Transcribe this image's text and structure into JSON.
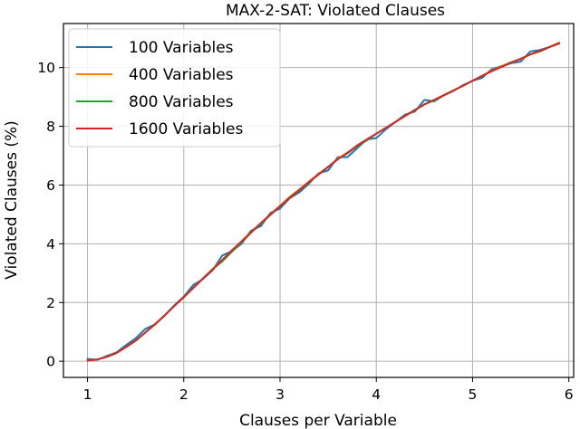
{
  "chart_data": {
    "type": "line",
    "title": "MAX-2-SAT: Violated Clauses",
    "xlabel": "Clauses per Variable",
    "ylabel": "Violated Clauses (%)",
    "xlim": [
      0.75,
      6.05
    ],
    "ylim": [
      -0.55,
      11.5
    ],
    "xticks": [
      1,
      2,
      3,
      4,
      5,
      6
    ],
    "yticks": [
      0,
      2,
      4,
      6,
      8,
      10
    ],
    "grid": true,
    "legend_position": "top-left",
    "x": [
      1.0,
      1.1,
      1.2,
      1.3,
      1.4,
      1.5,
      1.6,
      1.7,
      1.8,
      1.9,
      2.0,
      2.1,
      2.2,
      2.3,
      2.4,
      2.5,
      2.6,
      2.7,
      2.8,
      2.9,
      3.0,
      3.1,
      3.2,
      3.3,
      3.4,
      3.5,
      3.6,
      3.7,
      3.8,
      3.9,
      4.0,
      4.1,
      4.2,
      4.3,
      4.4,
      4.5,
      4.6,
      4.7,
      4.8,
      4.9,
      5.0,
      5.1,
      5.2,
      5.3,
      5.4,
      5.5,
      5.6,
      5.7,
      5.8,
      5.9
    ],
    "series": [
      {
        "name": "100 Variables",
        "color": "#1f77b4",
        "values": [
          0.08,
          0.05,
          0.18,
          0.3,
          0.55,
          0.78,
          1.1,
          1.25,
          1.55,
          1.9,
          2.2,
          2.6,
          2.8,
          3.1,
          3.6,
          3.75,
          4.0,
          4.45,
          4.6,
          5.05,
          5.2,
          5.55,
          5.75,
          6.05,
          6.4,
          6.5,
          6.95,
          6.95,
          7.25,
          7.55,
          7.6,
          7.9,
          8.15,
          8.4,
          8.5,
          8.9,
          8.85,
          9.05,
          9.2,
          9.4,
          9.55,
          9.65,
          9.95,
          10.05,
          10.15,
          10.2,
          10.55,
          10.6,
          10.7,
          10.85
        ]
      },
      {
        "name": "400 Variables",
        "color": "#ff7f0e",
        "values": [
          0.02,
          0.06,
          0.15,
          0.28,
          0.48,
          0.7,
          0.98,
          1.25,
          1.55,
          1.88,
          2.18,
          2.5,
          2.82,
          3.14,
          3.45,
          3.75,
          4.08,
          4.4,
          4.7,
          5.0,
          5.3,
          5.6,
          5.85,
          6.12,
          6.38,
          6.62,
          6.9,
          7.1,
          7.35,
          7.55,
          7.75,
          7.95,
          8.15,
          8.35,
          8.55,
          8.75,
          8.9,
          9.05,
          9.22,
          9.38,
          9.55,
          9.72,
          9.9,
          10.05,
          10.18,
          10.28,
          10.45,
          10.55,
          10.7,
          10.85
        ]
      },
      {
        "name": "800 Variables",
        "color": "#2ca02c",
        "values": [
          0.03,
          0.06,
          0.15,
          0.28,
          0.48,
          0.7,
          0.98,
          1.25,
          1.55,
          1.88,
          2.18,
          2.5,
          2.82,
          3.14,
          3.4,
          3.73,
          4.05,
          4.38,
          4.68,
          4.98,
          5.28,
          5.58,
          5.83,
          6.1,
          6.36,
          6.62,
          6.88,
          7.08,
          7.32,
          7.52,
          7.75,
          7.95,
          8.15,
          8.36,
          8.56,
          8.75,
          8.88,
          9.05,
          9.22,
          9.38,
          9.55,
          9.72,
          9.88,
          10.03,
          10.18,
          10.3,
          10.45,
          10.55,
          10.7,
          10.82
        ]
      },
      {
        "name": "1600 Variables",
        "color": "#d62728",
        "values": [
          0.02,
          0.06,
          0.15,
          0.28,
          0.48,
          0.7,
          0.98,
          1.26,
          1.56,
          1.88,
          2.18,
          2.5,
          2.82,
          3.12,
          3.45,
          3.78,
          4.08,
          4.4,
          4.7,
          5.0,
          5.28,
          5.56,
          5.82,
          6.1,
          6.36,
          6.62,
          6.88,
          7.1,
          7.34,
          7.55,
          7.75,
          7.95,
          8.15,
          8.36,
          8.55,
          8.75,
          8.9,
          9.06,
          9.22,
          9.38,
          9.55,
          9.72,
          9.88,
          10.02,
          10.16,
          10.3,
          10.45,
          10.57,
          10.7,
          10.82
        ]
      }
    ]
  }
}
